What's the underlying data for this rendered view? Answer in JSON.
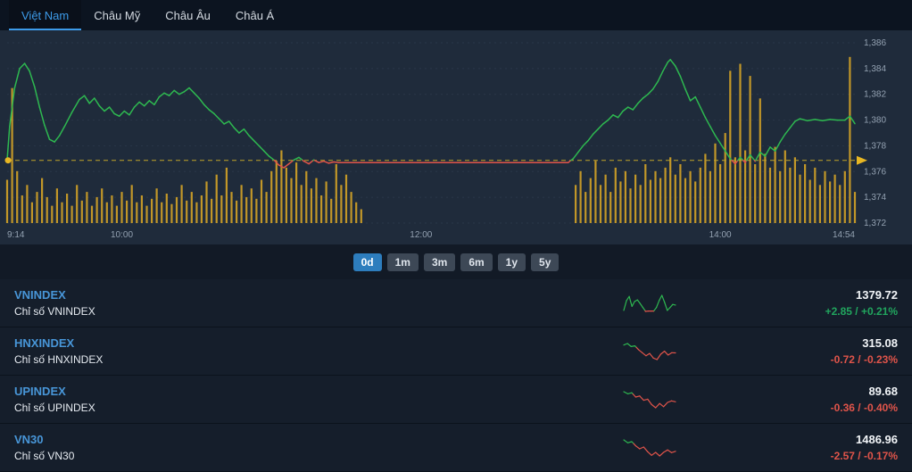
{
  "tabs": [
    {
      "label": "Việt Nam",
      "active": true
    },
    {
      "label": "Châu Mỹ",
      "active": false
    },
    {
      "label": "Châu Âu",
      "active": false
    },
    {
      "label": "Châu Á",
      "active": false
    }
  ],
  "range_buttons": [
    {
      "label": "0d",
      "active": true
    },
    {
      "label": "1m",
      "active": false
    },
    {
      "label": "3m",
      "active": false
    },
    {
      "label": "6m",
      "active": false
    },
    {
      "label": "1y",
      "active": false
    },
    {
      "label": "5y",
      "active": false
    }
  ],
  "chart_data": {
    "type": "line",
    "title": "VNINDEX intraday price with volume",
    "x_ticks": [
      "9:14",
      "10:00",
      "12:00",
      "14:00",
      "14:54"
    ],
    "x_tick_minutes": [
      0,
      46,
      166,
      286,
      340
    ],
    "x_range_minutes": [
      0,
      340
    ],
    "y_ticks": [
      "1,386",
      "1,384",
      "1,382",
      "1,380",
      "1,378",
      "1,376",
      "1,374",
      "1,372"
    ],
    "y_tick_values": [
      1386,
      1384,
      1382,
      1380,
      1378,
      1376,
      1374,
      1372
    ],
    "ylim": [
      1372,
      1386
    ],
    "reference_price": 1376.87,
    "last_price": 1379.72,
    "colors": {
      "up": "#2eb850",
      "down": "#e0544a",
      "volume": "#d4a327",
      "reference": "#bfa32a",
      "marker": "#e8b723",
      "grid": "#2a3749",
      "axis_text": "#93a1b1"
    },
    "price_series": [
      [
        0,
        1376.9
      ],
      [
        1,
        1379.5
      ],
      [
        3,
        1382.5
      ],
      [
        5,
        1384.0
      ],
      [
        7,
        1384.4
      ],
      [
        9,
        1383.8
      ],
      [
        11,
        1382.6
      ],
      [
        13,
        1381.0
      ],
      [
        15,
        1379.6
      ],
      [
        17,
        1378.5
      ],
      [
        19,
        1378.3
      ],
      [
        21,
        1378.8
      ],
      [
        23,
        1379.5
      ],
      [
        26,
        1380.6
      ],
      [
        29,
        1381.6
      ],
      [
        31,
        1381.9
      ],
      [
        33,
        1381.3
      ],
      [
        35,
        1381.7
      ],
      [
        37,
        1381.1
      ],
      [
        39,
        1380.7
      ],
      [
        41,
        1381.0
      ],
      [
        43,
        1380.5
      ],
      [
        45,
        1380.3
      ],
      [
        47,
        1380.7
      ],
      [
        49,
        1380.4
      ],
      [
        51,
        1381.0
      ],
      [
        53,
        1381.4
      ],
      [
        55,
        1381.1
      ],
      [
        57,
        1381.5
      ],
      [
        59,
        1381.2
      ],
      [
        61,
        1381.8
      ],
      [
        63,
        1382.1
      ],
      [
        65,
        1381.9
      ],
      [
        67,
        1382.3
      ],
      [
        69,
        1382.0
      ],
      [
        71,
        1382.2
      ],
      [
        73,
        1382.5
      ],
      [
        75,
        1382.1
      ],
      [
        77,
        1381.7
      ],
      [
        79,
        1381.2
      ],
      [
        81,
        1380.8
      ],
      [
        83,
        1380.5
      ],
      [
        85,
        1380.1
      ],
      [
        87,
        1379.7
      ],
      [
        89,
        1379.9
      ],
      [
        91,
        1379.4
      ],
      [
        93,
        1379.0
      ],
      [
        95,
        1379.3
      ],
      [
        97,
        1378.8
      ],
      [
        99,
        1378.4
      ],
      [
        101,
        1378.0
      ],
      [
        103,
        1377.6
      ],
      [
        105,
        1377.2
      ],
      [
        107,
        1376.9
      ],
      [
        109,
        1376.5
      ],
      [
        111,
        1376.3
      ],
      [
        113,
        1376.6
      ],
      [
        115,
        1376.9
      ],
      [
        117,
        1377.1
      ],
      [
        119,
        1376.8
      ],
      [
        121,
        1376.6
      ],
      [
        123,
        1376.9
      ],
      [
        125,
        1376.7
      ],
      [
        127,
        1376.8
      ],
      [
        129,
        1376.65
      ],
      [
        131,
        1376.75
      ],
      [
        133,
        1376.7
      ],
      [
        136,
        1376.7
      ],
      [
        225,
        1376.7
      ],
      [
        227,
        1377.0
      ],
      [
        229,
        1377.5
      ],
      [
        231,
        1378.0
      ],
      [
        233,
        1378.4
      ],
      [
        235,
        1378.9
      ],
      [
        237,
        1379.3
      ],
      [
        239,
        1379.7
      ],
      [
        241,
        1380.0
      ],
      [
        243,
        1380.4
      ],
      [
        245,
        1380.2
      ],
      [
        247,
        1380.7
      ],
      [
        249,
        1381.0
      ],
      [
        251,
        1380.8
      ],
      [
        253,
        1381.3
      ],
      [
        255,
        1381.7
      ],
      [
        257,
        1382.0
      ],
      [
        259,
        1382.4
      ],
      [
        261,
        1383.0
      ],
      [
        263,
        1383.8
      ],
      [
        265,
        1384.5
      ],
      [
        266,
        1384.7
      ],
      [
        268,
        1384.2
      ],
      [
        270,
        1383.4
      ],
      [
        272,
        1382.4
      ],
      [
        274,
        1381.5
      ],
      [
        276,
        1381.8
      ],
      [
        278,
        1381.0
      ],
      [
        280,
        1380.2
      ],
      [
        282,
        1379.5
      ],
      [
        284,
        1378.8
      ],
      [
        286,
        1378.2
      ],
      [
        288,
        1377.6
      ],
      [
        290,
        1377.0
      ],
      [
        292,
        1376.6
      ],
      [
        294,
        1377.1
      ],
      [
        296,
        1376.7
      ],
      [
        298,
        1377.3
      ],
      [
        300,
        1376.8
      ],
      [
        302,
        1377.5
      ],
      [
        304,
        1377.2
      ],
      [
        306,
        1377.9
      ],
      [
        308,
        1377.6
      ],
      [
        310,
        1378.3
      ],
      [
        312,
        1378.9
      ],
      [
        314,
        1379.4
      ],
      [
        316,
        1379.9
      ],
      [
        318,
        1380.1
      ],
      [
        321,
        1379.95
      ],
      [
        324,
        1380.05
      ],
      [
        327,
        1379.95
      ],
      [
        330,
        1380.05
      ],
      [
        333,
        1380.0
      ],
      [
        336,
        1380.0
      ],
      [
        338,
        1380.3
      ],
      [
        340,
        1379.72
      ]
    ],
    "volume_series": [
      [
        0,
        0.25
      ],
      [
        2,
        0.78
      ],
      [
        4,
        0.3
      ],
      [
        6,
        0.16
      ],
      [
        8,
        0.22
      ],
      [
        10,
        0.12
      ],
      [
        12,
        0.18
      ],
      [
        14,
        0.26
      ],
      [
        16,
        0.15
      ],
      [
        18,
        0.1
      ],
      [
        20,
        0.2
      ],
      [
        22,
        0.12
      ],
      [
        24,
        0.17
      ],
      [
        26,
        0.1
      ],
      [
        28,
        0.22
      ],
      [
        30,
        0.13
      ],
      [
        32,
        0.18
      ],
      [
        34,
        0.1
      ],
      [
        36,
        0.15
      ],
      [
        38,
        0.2
      ],
      [
        40,
        0.12
      ],
      [
        42,
        0.16
      ],
      [
        44,
        0.1
      ],
      [
        46,
        0.18
      ],
      [
        48,
        0.13
      ],
      [
        50,
        0.22
      ],
      [
        52,
        0.12
      ],
      [
        54,
        0.16
      ],
      [
        56,
        0.1
      ],
      [
        58,
        0.14
      ],
      [
        60,
        0.2
      ],
      [
        62,
        0.12
      ],
      [
        64,
        0.17
      ],
      [
        66,
        0.11
      ],
      [
        68,
        0.15
      ],
      [
        70,
        0.22
      ],
      [
        72,
        0.13
      ],
      [
        74,
        0.18
      ],
      [
        76,
        0.12
      ],
      [
        78,
        0.16
      ],
      [
        80,
        0.24
      ],
      [
        82,
        0.14
      ],
      [
        84,
        0.28
      ],
      [
        86,
        0.16
      ],
      [
        88,
        0.32
      ],
      [
        90,
        0.18
      ],
      [
        92,
        0.13
      ],
      [
        94,
        0.22
      ],
      [
        96,
        0.15
      ],
      [
        98,
        0.2
      ],
      [
        100,
        0.14
      ],
      [
        102,
        0.25
      ],
      [
        104,
        0.18
      ],
      [
        106,
        0.3
      ],
      [
        108,
        0.36
      ],
      [
        110,
        0.42
      ],
      [
        112,
        0.32
      ],
      [
        114,
        0.26
      ],
      [
        116,
        0.35
      ],
      [
        118,
        0.22
      ],
      [
        120,
        0.3
      ],
      [
        122,
        0.2
      ],
      [
        124,
        0.26
      ],
      [
        126,
        0.16
      ],
      [
        128,
        0.24
      ],
      [
        130,
        0.14
      ],
      [
        132,
        0.34
      ],
      [
        134,
        0.22
      ],
      [
        136,
        0.28
      ],
      [
        138,
        0.18
      ],
      [
        140,
        0.12
      ],
      [
        142,
        0.08
      ],
      [
        228,
        0.22
      ],
      [
        230,
        0.3
      ],
      [
        232,
        0.18
      ],
      [
        234,
        0.26
      ],
      [
        236,
        0.36
      ],
      [
        238,
        0.22
      ],
      [
        240,
        0.28
      ],
      [
        242,
        0.18
      ],
      [
        244,
        0.32
      ],
      [
        246,
        0.24
      ],
      [
        248,
        0.3
      ],
      [
        250,
        0.2
      ],
      [
        252,
        0.28
      ],
      [
        254,
        0.22
      ],
      [
        256,
        0.34
      ],
      [
        258,
        0.25
      ],
      [
        260,
        0.3
      ],
      [
        262,
        0.26
      ],
      [
        264,
        0.32
      ],
      [
        266,
        0.38
      ],
      [
        268,
        0.28
      ],
      [
        270,
        0.34
      ],
      [
        272,
        0.26
      ],
      [
        274,
        0.3
      ],
      [
        276,
        0.24
      ],
      [
        278,
        0.32
      ],
      [
        280,
        0.4
      ],
      [
        282,
        0.3
      ],
      [
        284,
        0.46
      ],
      [
        286,
        0.34
      ],
      [
        288,
        0.52
      ],
      [
        290,
        0.88
      ],
      [
        292,
        0.38
      ],
      [
        294,
        0.92
      ],
      [
        296,
        0.42
      ],
      [
        298,
        0.85
      ],
      [
        300,
        0.34
      ],
      [
        302,
        0.72
      ],
      [
        304,
        0.4
      ],
      [
        306,
        0.32
      ],
      [
        308,
        0.44
      ],
      [
        310,
        0.3
      ],
      [
        312,
        0.42
      ],
      [
        314,
        0.32
      ],
      [
        316,
        0.38
      ],
      [
        318,
        0.28
      ],
      [
        320,
        0.34
      ],
      [
        322,
        0.25
      ],
      [
        324,
        0.32
      ],
      [
        326,
        0.22
      ],
      [
        328,
        0.3
      ],
      [
        330,
        0.24
      ],
      [
        332,
        0.28
      ],
      [
        334,
        0.22
      ],
      [
        336,
        0.3
      ],
      [
        338,
        0.96
      ],
      [
        340,
        0.18
      ]
    ]
  },
  "indices": [
    {
      "symbol": "VNINDEX",
      "name": "Chỉ số VNINDEX",
      "value": "1379.72",
      "change": "+2.85 / +0.21%",
      "direction": "up",
      "spark": {
        "ref": 1376.87,
        "values": [
          1377.0,
          1382.0,
          1384.0,
          1379.0,
          1381.5,
          1382.3,
          1380.5,
          1378.5,
          1376.5,
          1376.7,
          1376.7,
          1376.7,
          1378.5,
          1382.0,
          1384.6,
          1381.0,
          1377.0,
          1378.5,
          1380.0,
          1379.7
        ]
      }
    },
    {
      "symbol": "HNXINDEX",
      "name": "Chỉ số HNXINDEX",
      "value": "315.08",
      "change": "-0.72 / -0.23%",
      "direction": "down",
      "spark": {
        "ref": 315.8,
        "values": [
          316.1,
          316.3,
          315.9,
          316.0,
          315.5,
          315.1,
          314.7,
          315.0,
          314.4,
          314.2,
          314.9,
          315.3,
          314.8,
          315.1,
          315.08
        ]
      }
    },
    {
      "symbol": "UPINDEX",
      "name": "Chỉ số UPINDEX",
      "value": "89.68",
      "change": "-0.36 / -0.40%",
      "direction": "down",
      "spark": {
        "ref": 90.04,
        "values": [
          90.15,
          90.05,
          90.1,
          89.9,
          89.95,
          89.75,
          89.8,
          89.55,
          89.4,
          89.6,
          89.45,
          89.65,
          89.72,
          89.68
        ]
      }
    },
    {
      "symbol": "VN30",
      "name": "Chỉ số VN30",
      "value": "1486.96",
      "change": "-2.57 / -0.17%",
      "direction": "down",
      "spark": {
        "ref": 1489.53,
        "values": [
          1490.8,
          1489.8,
          1490.2,
          1488.8,
          1487.8,
          1488.4,
          1486.8,
          1485.6,
          1486.6,
          1485.4,
          1486.6,
          1487.4,
          1486.5,
          1486.96
        ]
      }
    }
  ]
}
